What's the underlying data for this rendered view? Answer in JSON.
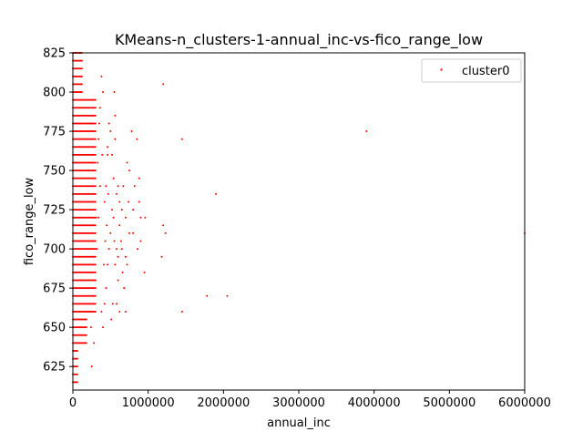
{
  "chart_data": {
    "type": "scatter",
    "title": "KMeans-n_clusters-1-annual_inc-vs-fico_range_low",
    "xlabel": "annual_inc",
    "ylabel": "fico_range_low",
    "xlim": [
      0,
      6000000
    ],
    "ylim": [
      610,
      825
    ],
    "x_ticks": [
      0,
      1000000,
      2000000,
      3000000,
      4000000,
      5000000,
      6000000
    ],
    "x_tick_labels": [
      "0",
      "1000000",
      "2000000",
      "3000000",
      "4000000",
      "5000000",
      "6000000"
    ],
    "y_ticks": [
      625,
      650,
      675,
      700,
      725,
      750,
      775,
      800,
      825
    ],
    "y_tick_labels": [
      "625",
      "650",
      "675",
      "700",
      "725",
      "750",
      "775",
      "800",
      "825"
    ],
    "grid": false,
    "legend_position": "top-right",
    "series": [
      {
        "name": "cluster0",
        "color": "#ff0000",
        "points": [
          [
            1200000,
            805
          ],
          [
            3900000,
            775
          ],
          [
            1450000,
            770
          ],
          [
            1900000,
            735
          ],
          [
            6000000,
            710
          ],
          [
            1200000,
            715
          ],
          [
            1230000,
            710
          ],
          [
            1180000,
            695
          ],
          [
            1780000,
            670
          ],
          [
            2050000,
            670
          ],
          [
            1450000,
            660
          ],
          [
            950000,
            685
          ],
          [
            860000,
            700
          ],
          [
            900000,
            705
          ],
          [
            800000,
            710
          ],
          [
            880000,
            730
          ],
          [
            880000,
            745
          ],
          [
            820000,
            740
          ],
          [
            960000,
            720
          ],
          [
            900000,
            720
          ],
          [
            780000,
            775
          ],
          [
            850000,
            770
          ],
          [
            750000,
            750
          ],
          [
            720000,
            755
          ],
          [
            800000,
            725
          ],
          [
            650000,
            725
          ],
          [
            700000,
            720
          ],
          [
            700000,
            695
          ],
          [
            750000,
            710
          ],
          [
            620000,
            730
          ],
          [
            600000,
            740
          ],
          [
            580000,
            735
          ],
          [
            550000,
            800
          ],
          [
            560000,
            785
          ],
          [
            520000,
            760
          ],
          [
            500000,
            775
          ],
          [
            480000,
            780
          ],
          [
            460000,
            765
          ],
          [
            440000,
            740
          ],
          [
            420000,
            730
          ],
          [
            400000,
            800
          ],
          [
            380000,
            810
          ],
          [
            360000,
            790
          ],
          [
            340000,
            770
          ],
          [
            540000,
            745
          ],
          [
            500000,
            710
          ],
          [
            480000,
            700
          ],
          [
            460000,
            690
          ],
          [
            440000,
            675
          ],
          [
            420000,
            665
          ],
          [
            400000,
            650
          ],
          [
            380000,
            660
          ],
          [
            600000,
            680
          ],
          [
            620000,
            660
          ],
          [
            650000,
            700
          ],
          [
            560000,
            690
          ],
          [
            530000,
            665
          ],
          [
            510000,
            655
          ],
          [
            700000,
            660
          ],
          [
            550000,
            705
          ],
          [
            580000,
            700
          ],
          [
            620000,
            715
          ],
          [
            670000,
            740
          ],
          [
            560000,
            770
          ],
          [
            460000,
            760
          ],
          [
            350000,
            780
          ],
          [
            330000,
            755
          ],
          [
            310000,
            720
          ],
          [
            300000,
            680
          ],
          [
            280000,
            640
          ],
          [
            250000,
            625
          ],
          [
            240000,
            650
          ],
          [
            230000,
            660
          ],
          [
            320000,
            700
          ],
          [
            340000,
            720
          ],
          [
            360000,
            740
          ],
          [
            390000,
            760
          ],
          [
            410000,
            690
          ],
          [
            430000,
            705
          ],
          [
            450000,
            715
          ],
          [
            470000,
            735
          ],
          [
            520000,
            725
          ],
          [
            540000,
            720
          ],
          [
            580000,
            665
          ],
          [
            600000,
            695
          ],
          [
            640000,
            705
          ],
          [
            660000,
            685
          ],
          [
            680000,
            675
          ],
          [
            720000,
            690
          ],
          [
            740000,
            730
          ]
        ]
      }
    ]
  }
}
